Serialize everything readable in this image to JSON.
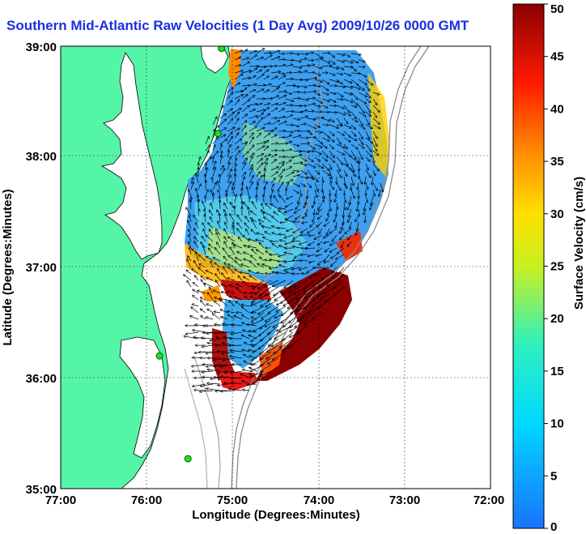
{
  "title": "Southern Mid-Atlantic Raw Velocities (1 Day Avg) 2009/10/26 0000 GMT",
  "x_axis": {
    "label": "Longitude (Degrees:Minutes)",
    "ticks": [
      "77:00",
      "76:00",
      "75:00",
      "74:00",
      "73:00",
      "72:00"
    ]
  },
  "y_axis": {
    "label": "Latitude (Degrees:Minutes)",
    "ticks": [
      "39:00",
      "38:00",
      "37:00",
      "36:00",
      "35:00"
    ]
  },
  "colorbar": {
    "label": "Surface Velocity (cm/s)",
    "ticks": [
      "50",
      "45",
      "40",
      "35",
      "30",
      "25",
      "20",
      "15",
      "10",
      "5",
      "0"
    ],
    "min": 0,
    "max": 50
  },
  "colors": {
    "land": "#55f5a8",
    "title": "#1a2fe0",
    "low_speed": "#1e88e8",
    "high_speed": "#8b0000"
  },
  "map": {
    "extent": {
      "lon": [
        -77,
        -72
      ],
      "lat": [
        35,
        39
      ]
    },
    "grid": true,
    "radar_sites": [
      {
        "lon": -75.13,
        "lat": 38.98
      },
      {
        "lon": -75.17,
        "lat": 38.21
      },
      {
        "lon": -75.85,
        "lat": 36.2
      },
      {
        "lon": -75.52,
        "lat": 35.27
      }
    ]
  }
}
